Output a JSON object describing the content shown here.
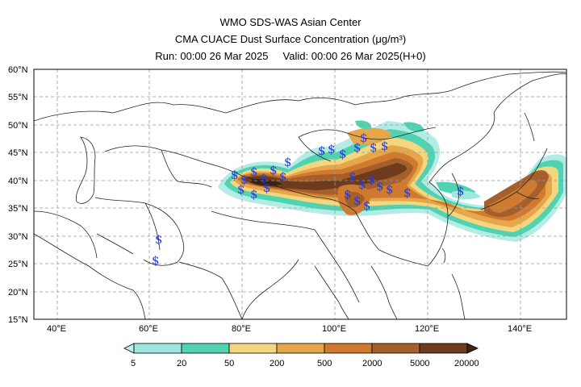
{
  "title": {
    "line1": "WMO SDS-WAS Asian Center",
    "line2": "CMA CUACE Dust Surface Concentration (μg/m³)",
    "line3": "Run: 00:00 26 Mar 2025     Valid: 00:00 26 Mar 2025(H+0)"
  },
  "map": {
    "lon_range": [
      35,
      150
    ],
    "lat_range": [
      15,
      60
    ],
    "lat_ticks": [
      "15°N",
      "20°N",
      "25°N",
      "30°N",
      "35°N",
      "40°N",
      "45°N",
      "50°N",
      "55°N",
      "60°N"
    ],
    "lon_ticks": [
      "40°E",
      "60°E",
      "80°E",
      "100°E",
      "120°E",
      "140°E"
    ],
    "dust_symbol": "$",
    "symbol_color": "#2a3cd0"
  },
  "colorbar": {
    "labels": [
      "5",
      "20",
      "50",
      "200",
      "500",
      "2000",
      "5000",
      "20000"
    ],
    "colors": [
      "#9ee7e0",
      "#4fd3b0",
      "#f2d680",
      "#e8a64a",
      "#cf7a2e",
      "#a45f2c",
      "#6e3b1c",
      "#3a2414"
    ]
  }
}
